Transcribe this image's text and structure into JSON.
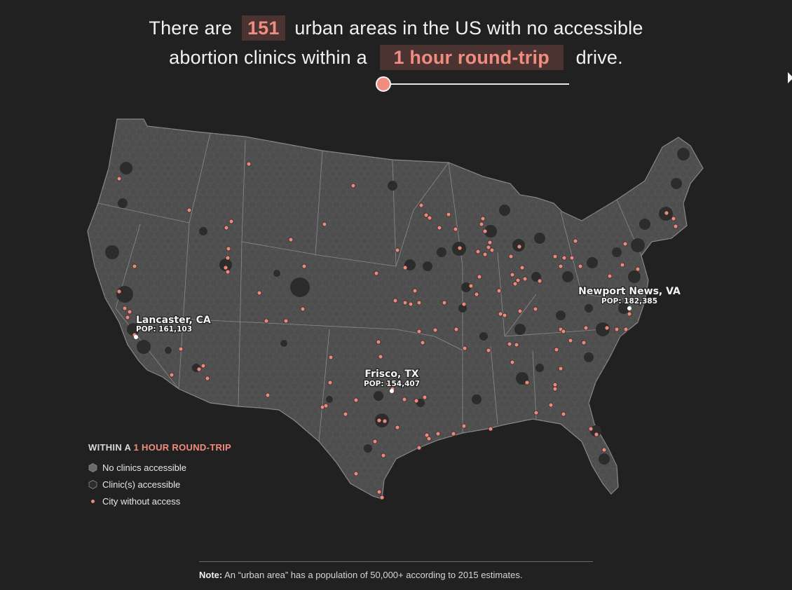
{
  "headline": {
    "prefix": "There are",
    "count": "151",
    "suffix": "urban areas in the US with no accessible",
    "line2_prefix": "abortion clinics within a",
    "distance": "1 hour round-trip",
    "line2_suffix": "drive."
  },
  "slider": {
    "value_fraction": 0.0
  },
  "callouts": [
    {
      "city": "Lancaster, CA",
      "pop": "POP: 161,103"
    },
    {
      "city": "Frisco, TX",
      "pop": "POP: 154,407"
    },
    {
      "city": "Newport News, VA",
      "pop": "POP: 182,385"
    }
  ],
  "legend": {
    "title_prefix": "WITHIN A",
    "title_accent": "1 HOUR ROUND-TRIP",
    "items": [
      {
        "label": "No clinics accessible"
      },
      {
        "label": "Clinic(s) accessible"
      },
      {
        "label": "City without access"
      }
    ]
  },
  "note": {
    "label": "Note:",
    "text": "An “urban area” has a population of 50,000+ according to 2015 estimates."
  },
  "colors": {
    "background": "#222121",
    "land": "#4e4e4e",
    "clinic_access": "#2e2e2e",
    "city_dot": "#f08c80",
    "highlight_bg": "#4a3331"
  }
}
